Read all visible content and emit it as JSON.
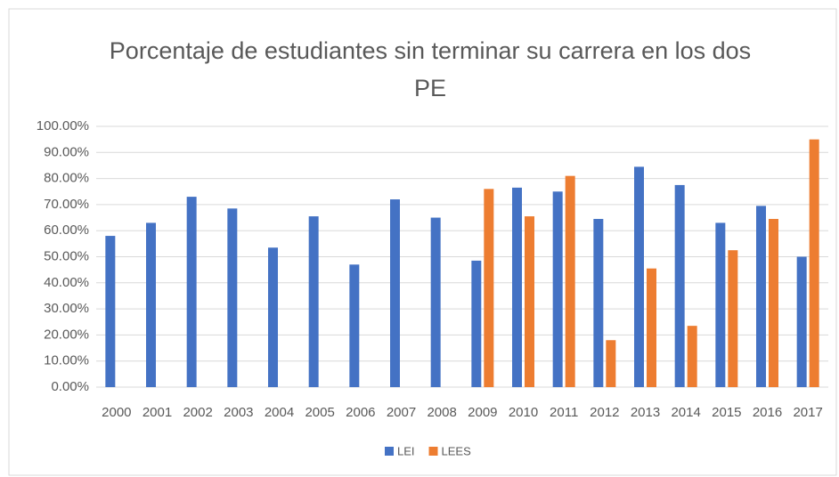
{
  "chart_data": {
    "type": "bar",
    "title": "Porcentaje de estudiantes sin terminar su carrera en los dos PE",
    "categories": [
      "2000",
      "2001",
      "2002",
      "2003",
      "2004",
      "2005",
      "2006",
      "2007",
      "2008",
      "2009",
      "2010",
      "2011",
      "2012",
      "2013",
      "2014",
      "2015",
      "2016",
      "2017"
    ],
    "series": [
      {
        "name": "LEI",
        "color": "#4472c4",
        "values": [
          58,
          63,
          73,
          68.5,
          53.5,
          65.5,
          47,
          72,
          65,
          48.5,
          76.5,
          75,
          64.5,
          84.5,
          77.5,
          63,
          69.5,
          50
        ]
      },
      {
        "name": "LEES",
        "color": "#ed7d31",
        "values": [
          null,
          null,
          null,
          null,
          null,
          null,
          null,
          null,
          null,
          76,
          65.5,
          81,
          18,
          45.5,
          23.5,
          52.5,
          64.5,
          95
        ]
      }
    ],
    "ylim": [
      0,
      100
    ],
    "yticks": [
      {
        "value": 0,
        "label": "0.00%"
      },
      {
        "value": 10,
        "label": "10.00%"
      },
      {
        "value": 20,
        "label": "20.00%"
      },
      {
        "value": 30,
        "label": "30.00%"
      },
      {
        "value": 40,
        "label": "40.00%"
      },
      {
        "value": 50,
        "label": "50.00%"
      },
      {
        "value": 60,
        "label": "60.00%"
      },
      {
        "value": 70,
        "label": "70.00%"
      },
      {
        "value": 80,
        "label": "80.00%"
      },
      {
        "value": 90,
        "label": "90.00%"
      },
      {
        "value": 100,
        "label": "100.00%"
      }
    ],
    "grid": true,
    "legend": "bottom"
  }
}
